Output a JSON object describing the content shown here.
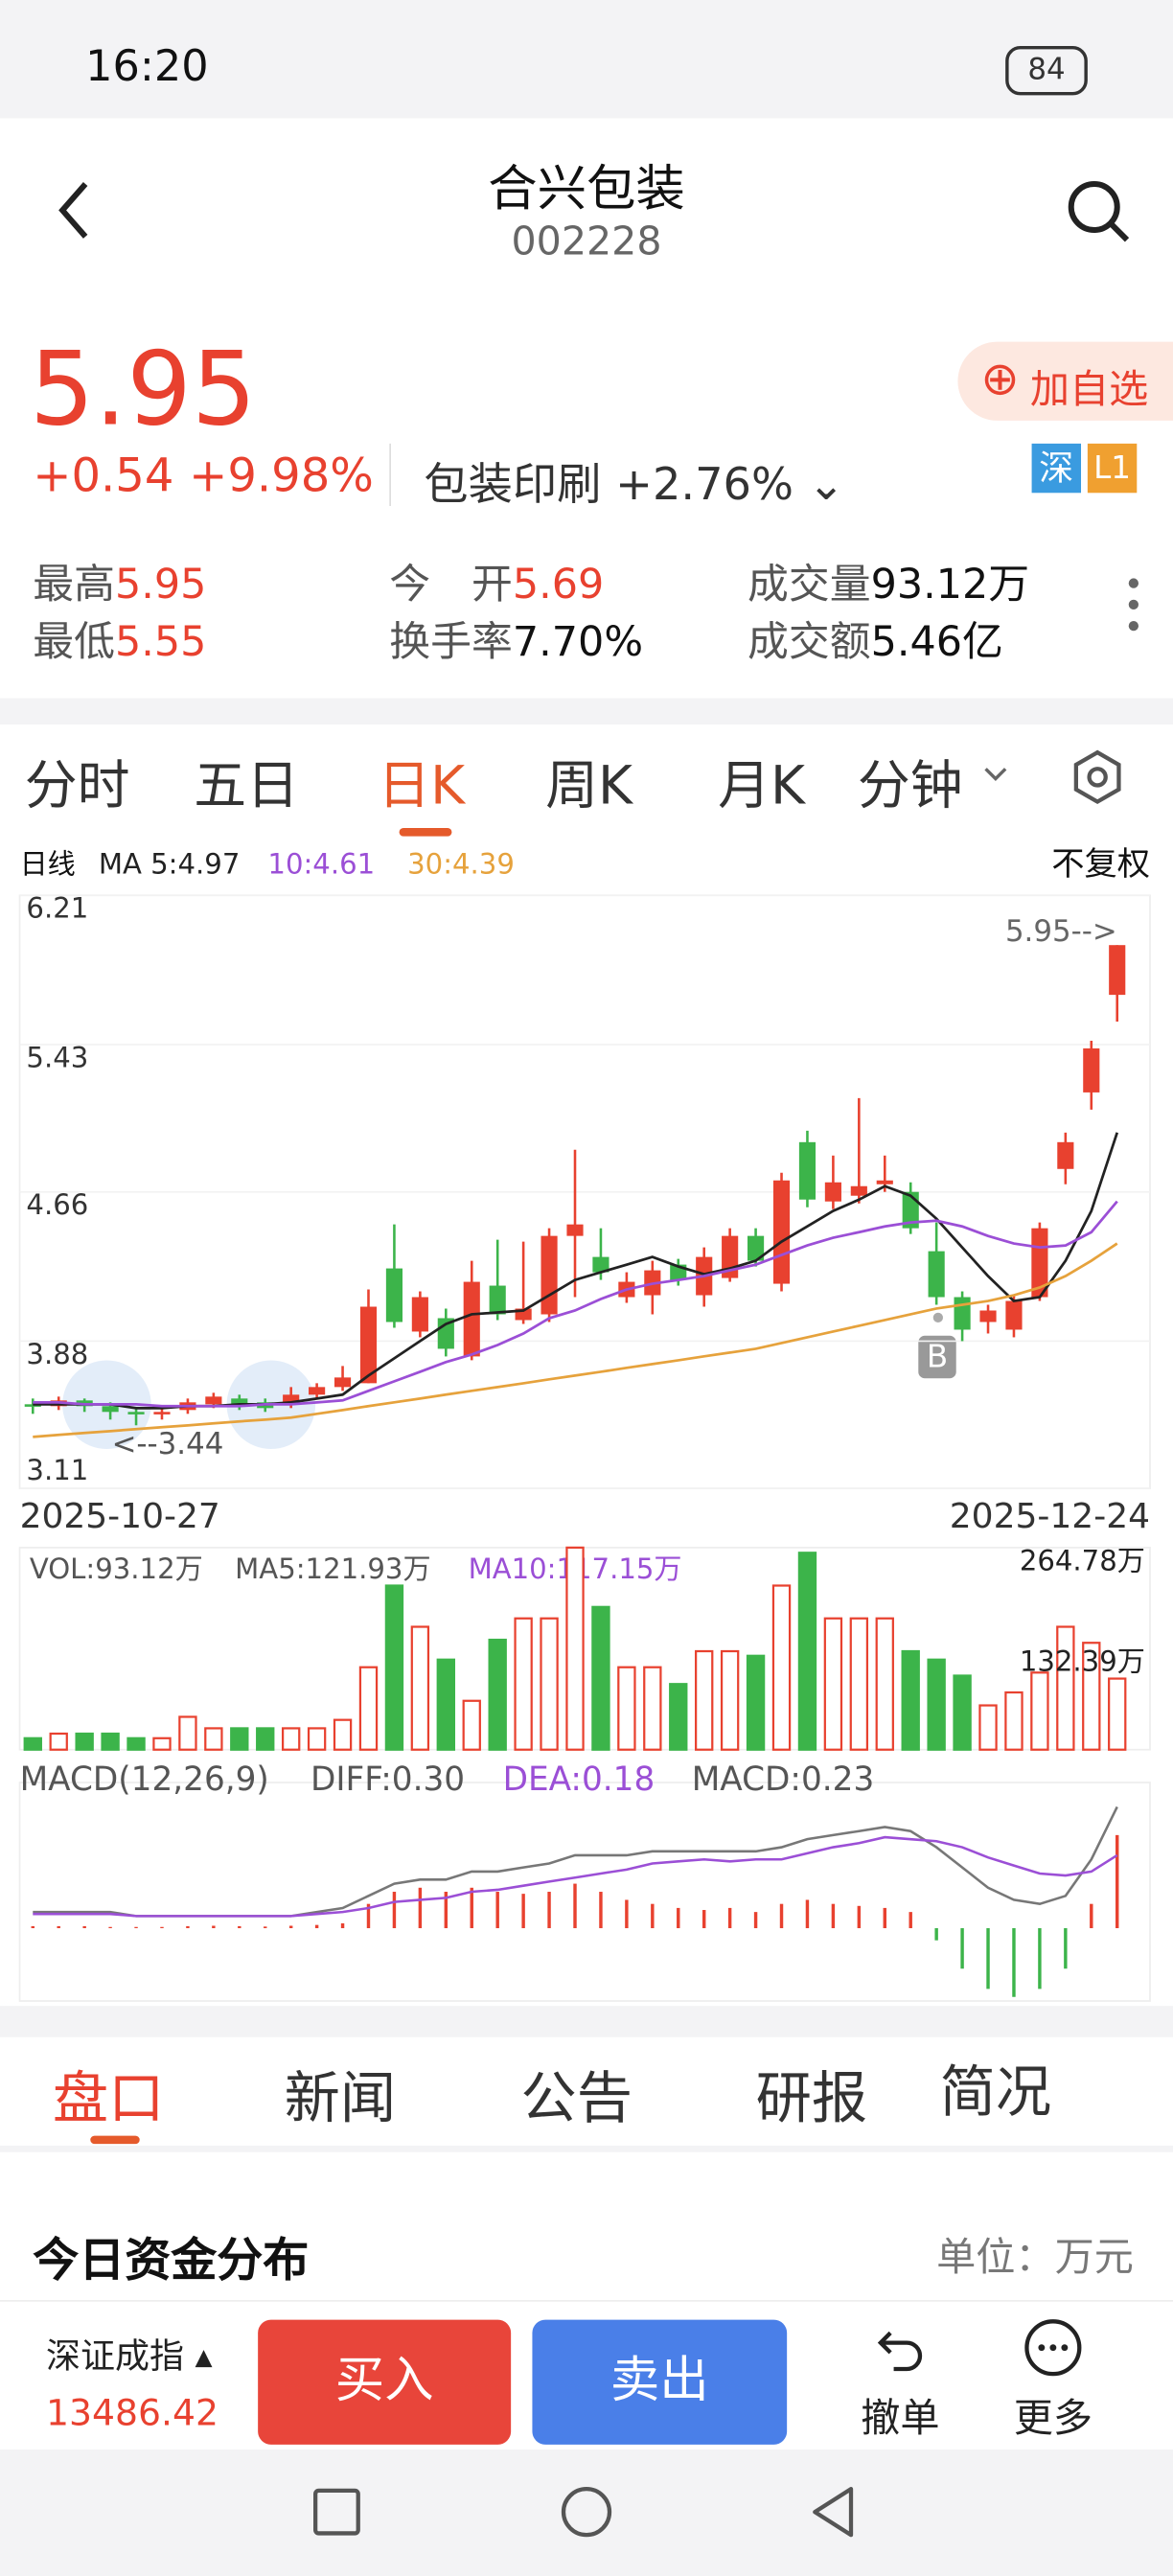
{
  "status": {
    "time": "16:20",
    "battery": "84"
  },
  "header": {
    "title": "合兴包装",
    "code": "002228"
  },
  "quote": {
    "price": "5.95",
    "change": "+0.54",
    "pct": "+9.98%",
    "sector": "包装印刷",
    "sector_pct": "+2.76%",
    "add": "加自选",
    "badges": [
      "深",
      "L1"
    ]
  },
  "stats": [
    {
      "label": "最高",
      "value": "5.95"
    },
    {
      "label": "最低",
      "value": "5.55"
    },
    {
      "label": "今　开",
      "value": "5.69"
    },
    {
      "label": "换手率",
      "value": "7.70%"
    },
    {
      "label": "成交量",
      "value": "93.12万"
    },
    {
      "label": "成交额",
      "value": "5.46亿"
    }
  ],
  "tabs": [
    "分时",
    "五日",
    "日K",
    "周K",
    "月K",
    "分钟"
  ],
  "chart_data": {
    "type": "candlestick",
    "period": "日线",
    "adjust": "不复权",
    "ylim": [
      3.11,
      6.21
    ],
    "yticks": [
      6.21,
      5.43,
      4.66,
      3.88,
      3.11
    ],
    "grid": true,
    "dates": [
      "2025-10-27",
      "2025-12-24"
    ],
    "high_note": "5.95-->",
    "low_note": "<--3.44",
    "marker": "B",
    "up_color": "#e8412f",
    "down_color": "#3cb44a",
    "open": [
      3.55,
      3.54,
      3.57,
      3.54,
      3.51,
      3.5,
      3.52,
      3.55,
      3.58,
      3.56,
      3.55,
      3.6,
      3.64,
      3.66,
      4.26,
      3.93,
      4.0,
      3.8,
      4.17,
      3.99,
      4.02,
      4.43,
      4.32,
      4.11,
      4.12,
      4.28,
      4.12,
      4.21,
      4.43,
      4.18,
      4.92,
      4.61,
      4.64,
      4.7,
      4.66,
      4.35,
      4.11,
      3.98,
      3.94,
      4.11,
      4.78,
      5.18,
      5.69
    ],
    "high": [
      3.58,
      3.59,
      3.58,
      3.56,
      3.53,
      3.53,
      3.58,
      3.61,
      3.6,
      3.58,
      3.64,
      3.66,
      3.75,
      4.15,
      4.49,
      4.14,
      4.05,
      4.3,
      4.41,
      4.4,
      4.47,
      4.88,
      4.47,
      4.24,
      4.3,
      4.31,
      4.37,
      4.47,
      4.47,
      4.76,
      4.98,
      4.85,
      5.15,
      4.85,
      4.71,
      4.5,
      4.14,
      4.07,
      4.12,
      4.5,
      4.97,
      5.45,
      5.95
    ],
    "low": [
      3.5,
      3.52,
      3.51,
      3.47,
      3.44,
      3.47,
      3.5,
      3.53,
      3.52,
      3.51,
      3.53,
      3.58,
      3.62,
      3.66,
      3.95,
      3.9,
      3.8,
      3.78,
      3.99,
      3.97,
      3.98,
      4.11,
      4.2,
      4.08,
      4.02,
      4.17,
      4.06,
      4.19,
      4.27,
      4.14,
      4.58,
      4.57,
      4.6,
      4.66,
      4.44,
      4.07,
      3.88,
      3.92,
      3.9,
      4.09,
      4.7,
      5.09,
      5.55
    ],
    "close": [
      3.54,
      3.57,
      3.54,
      3.51,
      3.5,
      3.51,
      3.56,
      3.59,
      3.54,
      3.53,
      3.6,
      3.64,
      3.69,
      4.06,
      3.98,
      4.11,
      3.84,
      4.19,
      4.02,
      4.05,
      4.43,
      4.49,
      4.24,
      4.19,
      4.25,
      4.2,
      4.32,
      4.43,
      4.3,
      4.72,
      4.62,
      4.71,
      4.69,
      4.72,
      4.47,
      4.11,
      3.94,
      4.04,
      4.09,
      4.47,
      4.92,
      5.41,
      5.95
    ],
    "ma_lines": [
      {
        "label": "MA 5:4.97",
        "color": "#222222",
        "values": [
          3.55,
          3.55,
          3.55,
          3.55,
          3.53,
          3.53,
          3.54,
          3.54,
          3.55,
          3.55,
          3.56,
          3.58,
          3.6,
          3.7,
          3.79,
          3.88,
          3.97,
          4.02,
          4.03,
          4.04,
          4.12,
          4.2,
          4.24,
          4.28,
          4.32,
          4.27,
          4.23,
          4.26,
          4.3,
          4.4,
          4.48,
          4.56,
          4.62,
          4.69,
          4.64,
          4.52,
          4.37,
          4.22,
          4.09,
          4.11,
          4.3,
          4.56,
          4.97
        ]
      },
      {
        "label": "10:4.61",
        "color": "#9b4fd6",
        "values": [
          3.56,
          3.56,
          3.55,
          3.55,
          3.55,
          3.54,
          3.54,
          3.54,
          3.54,
          3.55,
          3.55,
          3.56,
          3.57,
          3.62,
          3.67,
          3.72,
          3.77,
          3.81,
          3.86,
          3.92,
          4.0,
          4.04,
          4.1,
          4.15,
          4.18,
          4.2,
          4.22,
          4.25,
          4.28,
          4.33,
          4.38,
          4.42,
          4.45,
          4.48,
          4.5,
          4.51,
          4.48,
          4.43,
          4.39,
          4.37,
          4.38,
          4.45,
          4.61
        ]
      },
      {
        "label": "30:4.39",
        "color": "#e6a23c",
        "values": [
          3.38,
          3.39,
          3.4,
          3.41,
          3.42,
          3.43,
          3.44,
          3.45,
          3.46,
          3.47,
          3.48,
          3.5,
          3.52,
          3.54,
          3.56,
          3.58,
          3.6,
          3.62,
          3.64,
          3.66,
          3.68,
          3.7,
          3.72,
          3.74,
          3.76,
          3.78,
          3.8,
          3.82,
          3.84,
          3.87,
          3.9,
          3.93,
          3.96,
          3.99,
          4.02,
          4.05,
          4.07,
          4.09,
          4.12,
          4.16,
          4.22,
          4.3,
          4.39
        ]
      }
    ],
    "volume": {
      "ylim": [
        0,
        264.78
      ],
      "yticks": [
        {
          "value": 264.78,
          "label": "264.78万"
        },
        {
          "value": 132.39,
          "label": "132.39万"
        }
      ],
      "legend": [
        {
          "label": "VOL:93.12万",
          "color": "#555555"
        },
        {
          "label": "MA5:121.93万",
          "color": "#555555"
        },
        {
          "label": "MA10:117.15万",
          "color": "#9b4fd6"
        }
      ],
      "values": [
        15,
        21,
        21,
        21,
        15,
        15,
        43,
        28,
        28,
        28,
        28,
        28,
        39,
        108,
        215,
        161,
        118,
        64,
        144,
        172,
        172,
        264.78,
        187,
        108,
        108,
        86,
        129,
        129,
        123,
        215,
        258,
        172,
        172,
        172,
        129,
        118,
        97,
        58,
        75,
        101,
        161,
        140,
        93.12
      ]
    },
    "macd": {
      "ylim": [
        -0.18,
        0.36
      ],
      "legend": [
        {
          "label": "MACD(12,26,9)",
          "color": "#555555"
        },
        {
          "label": "DIFF:0.30",
          "color": "#555555"
        },
        {
          "label": "DEA:0.18",
          "color": "#9b4fd6"
        },
        {
          "label": "MACD:0.23",
          "color": "#555555"
        }
      ],
      "values": [
        0.005,
        0.005,
        0.005,
        0.003,
        0.003,
        0.003,
        0.005,
        0.006,
        0.005,
        0.004,
        0.006,
        0.008,
        0.012,
        0.06,
        0.09,
        0.1,
        0.09,
        0.1,
        0.09,
        0.085,
        0.09,
        0.11,
        0.09,
        0.07,
        0.06,
        0.05,
        0.045,
        0.05,
        0.04,
        0.06,
        0.07,
        0.06,
        0.055,
        0.05,
        0.04,
        -0.03,
        -0.1,
        -0.15,
        -0.17,
        -0.15,
        -0.1,
        0.06,
        0.23
      ],
      "diff": [
        0.04,
        0.04,
        0.04,
        0.04,
        0.03,
        0.03,
        0.03,
        0.03,
        0.03,
        0.03,
        0.03,
        0.04,
        0.05,
        0.08,
        0.11,
        0.12,
        0.12,
        0.14,
        0.14,
        0.15,
        0.16,
        0.18,
        0.18,
        0.18,
        0.19,
        0.19,
        0.19,
        0.19,
        0.19,
        0.2,
        0.22,
        0.23,
        0.24,
        0.25,
        0.24,
        0.2,
        0.15,
        0.1,
        0.07,
        0.06,
        0.08,
        0.17,
        0.3
      ],
      "dea": [
        0.035,
        0.035,
        0.035,
        0.035,
        0.03,
        0.03,
        0.03,
        0.03,
        0.03,
        0.03,
        0.03,
        0.035,
        0.04,
        0.05,
        0.065,
        0.07,
        0.075,
        0.09,
        0.095,
        0.105,
        0.115,
        0.125,
        0.135,
        0.145,
        0.16,
        0.165,
        0.17,
        0.165,
        0.17,
        0.17,
        0.185,
        0.2,
        0.21,
        0.225,
        0.22,
        0.215,
        0.2,
        0.175,
        0.155,
        0.135,
        0.13,
        0.14,
        0.18
      ],
      "diff_color": "#777777",
      "dea_color": "#9b4fd6"
    }
  },
  "bottom_tabs": [
    "盘口",
    "新闻",
    "公告",
    "研报",
    "简况"
  ],
  "section": {
    "title": "今日资金分布",
    "unit": "单位：万元"
  },
  "footer": {
    "index": "深证成指",
    "index_value": "13486.42",
    "buy": "买入",
    "sell": "卖出",
    "actions": [
      "撤单",
      "更多"
    ]
  }
}
